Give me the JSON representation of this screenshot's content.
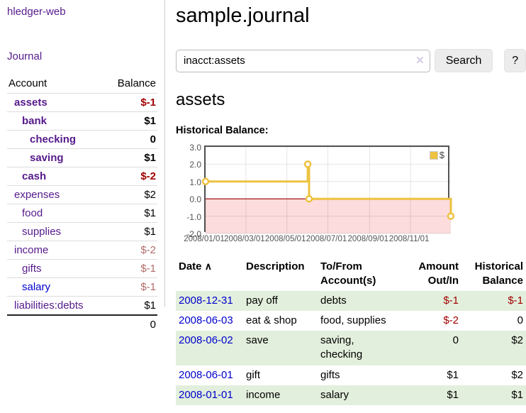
{
  "sidebar": {
    "brand": "hledger-web",
    "nav_journal": "Journal",
    "accounts": {
      "headers": {
        "account": "Account",
        "balance": "Balance"
      },
      "rows": [
        {
          "name": "assets",
          "balance": "$-1"
        },
        {
          "name": "bank",
          "balance": "$1"
        },
        {
          "name": "checking",
          "balance": "0"
        },
        {
          "name": "saving",
          "balance": "$1"
        },
        {
          "name": "cash",
          "balance": "$-2"
        },
        {
          "name": "expenses",
          "balance": "$2"
        },
        {
          "name": "food",
          "balance": "$1"
        },
        {
          "name": "supplies",
          "balance": "$1"
        },
        {
          "name": "income",
          "balance": "$-2"
        },
        {
          "name": "gifts",
          "balance": "$-1"
        },
        {
          "name": "salary",
          "balance": "$-1"
        },
        {
          "name": "liabilities:debts",
          "balance": "$1"
        }
      ],
      "total": "0"
    }
  },
  "main": {
    "title": "sample.journal",
    "search": {
      "value": "inacct:assets",
      "button": "Search",
      "help": "?"
    },
    "account_heading": "assets",
    "chart_label": "Historical Balance:"
  },
  "icons": {
    "clear_search": "✕",
    "sort_asc": "∧"
  },
  "chart_data": {
    "type": "line",
    "title": "Historical Balance:",
    "step": true,
    "ylim": [
      -2,
      3
    ],
    "y_ticks": [
      3.0,
      2.0,
      1.0,
      0.0,
      -1.0,
      -2.0
    ],
    "xlim_days": [
      0,
      365
    ],
    "x_tick_days": [
      0,
      60,
      121,
      182,
      244,
      305
    ],
    "x_tick_labels": [
      "2008/01/01",
      "2008/03/01",
      "2008/05/01",
      "2008/07/01",
      "2008/09/01",
      "2008/11/01"
    ],
    "series": [
      {
        "name": "$",
        "color": "#edc240",
        "points": [
          {
            "date": "2008-01-01",
            "x_day": 0,
            "y": 1
          },
          {
            "date": "2008-06-01",
            "x_day": 152,
            "y": 2
          },
          {
            "date": "2008-06-03",
            "x_day": 154,
            "y": 0
          },
          {
            "date": "2008-12-31",
            "x_day": 365,
            "y": -1
          }
        ]
      }
    ],
    "legend_position": "top-right",
    "grid": true,
    "negative_region_fill": "#fcdcdc",
    "zero_line_color": "#990000",
    "border_color": "#545454"
  },
  "register": {
    "headers": {
      "date": "Date",
      "description": "Description",
      "accounts": "To/From Account(s)",
      "amount": "Amount Out/In",
      "balance": "Historical Balance"
    },
    "rows": [
      {
        "date": "2008-12-31",
        "description": "pay off",
        "accounts": "debts",
        "amount": "$-1",
        "balance": "$-1"
      },
      {
        "date": "2008-06-03",
        "description": "eat & shop",
        "accounts": "food, supplies",
        "amount": "$-2",
        "balance": "0"
      },
      {
        "date": "2008-06-02",
        "description": "save",
        "accounts": "saving, checking",
        "amount": "0",
        "balance": "$2"
      },
      {
        "date": "2008-06-01",
        "description": "gift",
        "accounts": "gifts",
        "amount": "$1",
        "balance": "$2"
      },
      {
        "date": "2008-01-01",
        "description": "income",
        "accounts": "salary",
        "amount": "$1",
        "balance": "$1"
      }
    ]
  }
}
